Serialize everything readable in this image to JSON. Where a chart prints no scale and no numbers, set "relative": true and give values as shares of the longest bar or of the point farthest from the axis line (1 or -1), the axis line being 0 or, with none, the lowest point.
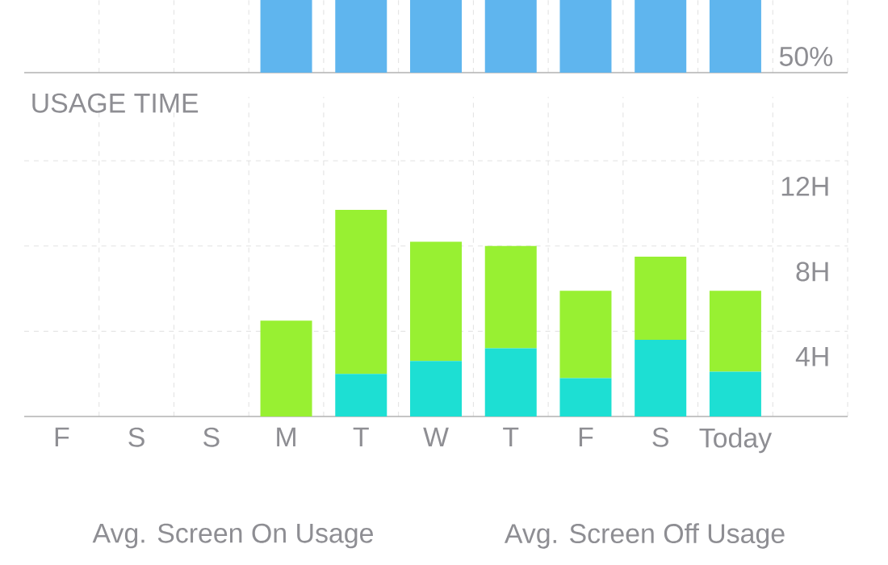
{
  "chart_data": [
    {
      "type": "bar",
      "categories": [
        null,
        null,
        null,
        null,
        null,
        null,
        null
      ],
      "grid": "x",
      "relative": true,
      "annotations": [
        "50%"
      ],
      "series": [
        {
          "color": "#5fb5ee",
          "values": [
            1,
            1,
            1,
            1,
            1,
            1,
            1
          ]
        }
      ]
    },
    {
      "type": "bar",
      "title": "USAGE TIME",
      "categories": [
        "F",
        "S",
        "S",
        "M",
        "T",
        "W",
        "T",
        "F",
        "S",
        "Today"
      ],
      "stacked": true,
      "grid": true,
      "ylim": [
        0,
        15
      ],
      "yticks": [
        {
          "value": 4,
          "label": "4H"
        },
        {
          "value": 8,
          "label": "8H"
        },
        {
          "value": 12,
          "label": "12H"
        }
      ],
      "series": [
        {
          "color": "#1ddfd3",
          "values": [
            null,
            null,
            null,
            0,
            2.0,
            2.6,
            3.2,
            1.8,
            3.6,
            2.1
          ]
        },
        {
          "color": "#98f032",
          "values": [
            null,
            null,
            null,
            4.5,
            7.7,
            5.6,
            4.8,
            4.1,
            3.9,
            3.8
          ]
        }
      ],
      "annotations": [
        "Avg. Screen On Usage",
        "Avg. Screen Off Usage"
      ]
    }
  ]
}
